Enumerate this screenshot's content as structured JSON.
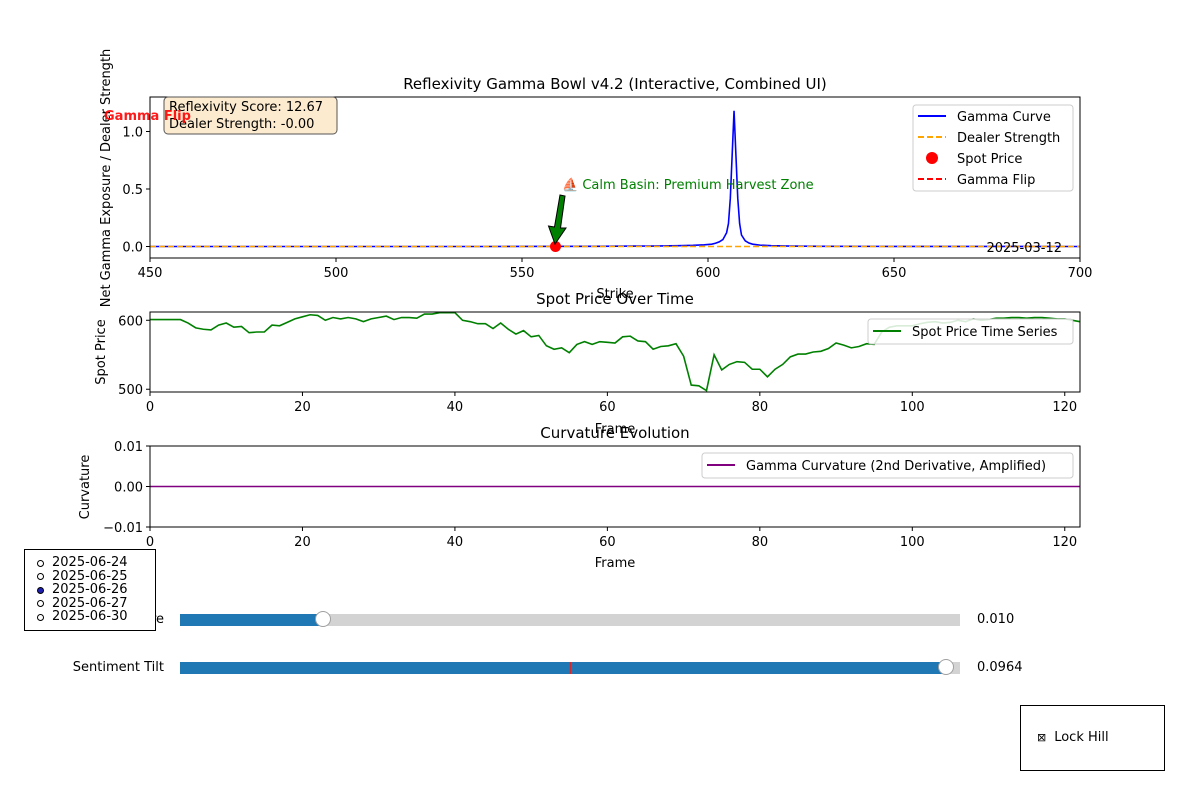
{
  "chart_data": [
    {
      "type": "line",
      "title": "Reflexivity Gamma Bowl v4.2 (Interactive, Combined UI)",
      "xlabel": "Strike",
      "ylabel": "Net Gamma Exposure / Dealer Strength",
      "xlim": [
        450,
        700
      ],
      "ylim": [
        -0.1,
        1.3
      ],
      "xticks": [
        450,
        500,
        550,
        600,
        650,
        700
      ],
      "yticks": [
        0.0,
        0.5,
        1.0
      ],
      "ytick_labels": [
        "0.0",
        "0.5",
        "1.0"
      ],
      "legend_position": "upper-right",
      "series": [
        {
          "name": "Gamma Curve",
          "color": "#0000ff",
          "style": "solid",
          "x": [
            450,
            540,
            570,
            585,
            592,
            596,
            599,
            601,
            602,
            603,
            604,
            605,
            605.5,
            606,
            606.5,
            607,
            607.5,
            608,
            608.5,
            609,
            610,
            611,
            612,
            614,
            617,
            622,
            630,
            645,
            700
          ],
          "y": [
            0,
            0,
            0.002,
            0.004,
            0.007,
            0.01,
            0.015,
            0.02,
            0.028,
            0.04,
            0.06,
            0.12,
            0.2,
            0.42,
            0.8,
            1.18,
            0.8,
            0.42,
            0.2,
            0.1,
            0.05,
            0.03,
            0.02,
            0.012,
            0.007,
            0.004,
            0.002,
            0.001,
            0
          ]
        },
        {
          "name": "Dealer Strength",
          "color": "#ffa500",
          "style": "dashed",
          "x": [
            450,
            700
          ],
          "y": [
            0,
            0
          ]
        },
        {
          "name": "Spot Price",
          "color": "#ff0000",
          "style": "marker",
          "x": [
            559
          ],
          "y": [
            0
          ]
        },
        {
          "name": "Gamma Flip",
          "color": "#ff0000",
          "style": "dashed",
          "x": [
            450
          ],
          "y": [
            0
          ]
        }
      ],
      "annotations": {
        "score_box_line1": "Reflexivity Score: 12.67",
        "score_box_line2": "Dealer Strength: -0.00",
        "gamma_flip_label": "Gamma Flip",
        "calm_basin_label": "⛵ Calm Basin: Premium Harvest Zone",
        "date_label": "2025-03-12"
      }
    },
    {
      "type": "line",
      "title": "Spot Price Over Time",
      "xlabel": "Frame",
      "ylabel": "Spot Price",
      "xlim": [
        0,
        122
      ],
      "ylim": [
        496,
        612
      ],
      "xticks": [
        0,
        20,
        40,
        60,
        80,
        100,
        120
      ],
      "yticks": [
        500,
        600
      ],
      "legend_position": "upper-right",
      "series": [
        {
          "name": "Spot Price Time Series",
          "color": "#008000",
          "x": [
            0,
            1,
            2,
            3,
            4,
            5,
            6,
            7,
            8,
            9,
            10,
            11,
            12,
            13,
            14,
            15,
            16,
            17,
            18,
            19,
            20,
            21,
            22,
            23,
            24,
            25,
            26,
            27,
            28,
            29,
            30,
            31,
            32,
            33,
            34,
            35,
            36,
            37,
            38,
            39,
            40,
            41,
            42,
            43,
            44,
            45,
            46,
            47,
            48,
            49,
            50,
            51,
            52,
            53,
            54,
            55,
            56,
            57,
            58,
            59,
            60,
            61,
            62,
            63,
            64,
            65,
            66,
            67,
            68,
            69,
            70,
            71,
            72,
            73,
            74,
            75,
            76,
            77,
            78,
            79,
            80,
            81,
            82,
            83,
            84,
            85,
            86,
            87,
            88,
            89,
            90,
            91,
            92,
            93,
            94,
            95,
            96,
            97,
            98,
            99,
            100,
            101,
            102,
            103,
            104,
            105,
            106,
            107,
            108,
            109,
            110,
            111,
            112,
            113,
            114,
            115,
            116,
            117,
            118,
            119,
            120,
            121,
            122
          ],
          "y": [
            601,
            601,
            601,
            601,
            601,
            596,
            589,
            587,
            586,
            593,
            596,
            590,
            591,
            582,
            583,
            583,
            593,
            592,
            597,
            602,
            605,
            608,
            607,
            600,
            604,
            602,
            604,
            602,
            598,
            602,
            604,
            606,
            601,
            604,
            604,
            603,
            609,
            609,
            611,
            611,
            611,
            600,
            598,
            595,
            595,
            588,
            596,
            587,
            580,
            585,
            576,
            578,
            563,
            558,
            560,
            553,
            565,
            569,
            565,
            569,
            568,
            567,
            576,
            577,
            570,
            569,
            558,
            562,
            563,
            566,
            548,
            506,
            505,
            498,
            550,
            528,
            536,
            540,
            539,
            529,
            529,
            518,
            529,
            536,
            547,
            551,
            551,
            554,
            555,
            559,
            567,
            564,
            560,
            562,
            566,
            565,
            583,
            590,
            592,
            592,
            592,
            595,
            597,
            598,
            596,
            597,
            600,
            598,
            602,
            600,
            601,
            603,
            603,
            604,
            604,
            603,
            604,
            604,
            603,
            602,
            602,
            600,
            598
          ]
        }
      ]
    },
    {
      "type": "line",
      "title": "Curvature Evolution",
      "xlabel": "Frame",
      "ylabel": "Curvature",
      "xlim": [
        0,
        122
      ],
      "ylim": [
        -0.01,
        0.01
      ],
      "xticks": [
        0,
        20,
        40,
        60,
        80,
        100,
        120
      ],
      "yticks": [
        -0.01,
        0.0,
        0.01
      ],
      "ytick_labels": [
        "−0.01",
        "0.00",
        "0.01"
      ],
      "legend_position": "upper-right",
      "series": [
        {
          "name": "Gamma Curvature (2nd Derivative, Amplified)",
          "color": "#800080",
          "x": [
            0,
            122
          ],
          "y": [
            0,
            0
          ]
        }
      ]
    }
  ],
  "controls": {
    "date_options": [
      "2025-06-24",
      "2025-06-25",
      "2025-06-26",
      "2025-06-27",
      "2025-06-30"
    ],
    "selected_date_index": 2,
    "sliders": [
      {
        "label": "ure",
        "value_text": "0.010",
        "fraction": 0.183,
        "init_fraction": null
      },
      {
        "label": "Sentiment Tilt",
        "value_text": "0.0964",
        "fraction": 0.982,
        "init_fraction": 0.5
      }
    ],
    "checkbox": {
      "label": "Lock Hill",
      "symbol": "⊠",
      "checked": true
    },
    "colors": {
      "slider_fill": "#1f77b4",
      "slider_track": "#d3d3d3",
      "radio_selected": "#1f1fb4"
    }
  }
}
